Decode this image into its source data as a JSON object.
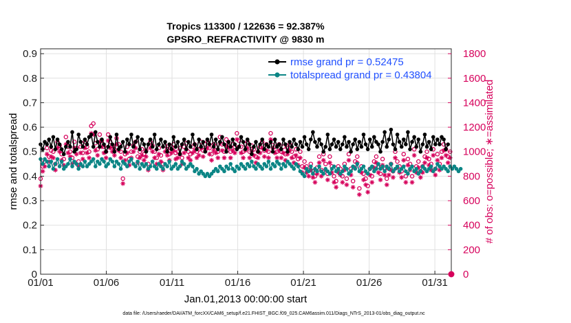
{
  "chart_data": {
    "type": "line",
    "title_line1": "Tropics 113300 / 122636 = 92.387%",
    "title_line2": "GPSRO_REFRACTIVITY @ 9830 m",
    "xlabel": "Jan.01,2013 00:00:00 start",
    "ylabel_left": "rmse and totalspread",
    "ylabel_right": "# of obs: o=possible; ∗=assimilated",
    "x_ticks": [
      "01/01",
      "01/06",
      "01/11",
      "01/16",
      "01/21",
      "01/26",
      "01/31"
    ],
    "y_left_ticks": [
      "0",
      "0.1",
      "0.2",
      "0.3",
      "0.4",
      "0.5",
      "0.6",
      "0.7",
      "0.8",
      "0.9"
    ],
    "y_right_ticks": [
      "0",
      "200",
      "400",
      "600",
      "800",
      "1000",
      "1200",
      "1400",
      "1600",
      "1800"
    ],
    "xlim": [
      0,
      31.25
    ],
    "ylim_left": [
      0,
      0.92
    ],
    "ylim_right": [
      0,
      1840
    ],
    "footer": "data file: /Users/raeder/DAI/ATM_forcXX/CAM6_setup/f.e21.FHIST_BGC.f09_025.CAM6assim.011/Diags_NTrS_2013-01/obs_diag_output.nc",
    "colors": {
      "rmse": "#000000",
      "spread": "#0b8585",
      "obs": "#d6005b",
      "legend_text": "#1f4fff",
      "grid": "#e0e0e0"
    },
    "series": [
      {
        "name": "rmse grand pr = 0.52475",
        "values": [
          0.53,
          0.51,
          0.54,
          0.53,
          0.55,
          0.52,
          0.56,
          0.51,
          0.55,
          0.53,
          0.51,
          0.49,
          0.52,
          0.54,
          0.52,
          0.58,
          0.5,
          0.51,
          0.57,
          0.54,
          0.52,
          0.55,
          0.53,
          0.56,
          0.57,
          0.52,
          0.58,
          0.54,
          0.52,
          0.55,
          0.53,
          0.5,
          0.52,
          0.56,
          0.53,
          0.5,
          0.57,
          0.51,
          0.52,
          0.54,
          0.5,
          0.55,
          0.53,
          0.57,
          0.52,
          0.54,
          0.56,
          0.51,
          0.55,
          0.53,
          0.5,
          0.53,
          0.55,
          0.52,
          0.57,
          0.51,
          0.53,
          0.55,
          0.52,
          0.54,
          0.5,
          0.53,
          0.51,
          0.56,
          0.52,
          0.54,
          0.49,
          0.53,
          0.55,
          0.51,
          0.54,
          0.52,
          0.57,
          0.53,
          0.51,
          0.55,
          0.52,
          0.54,
          0.5,
          0.55,
          0.53,
          0.57,
          0.52,
          0.55,
          0.51,
          0.54,
          0.56,
          0.53,
          0.5,
          0.54,
          0.52,
          0.55,
          0.53,
          0.51,
          0.52,
          0.56,
          0.54,
          0.51,
          0.55,
          0.53,
          0.49,
          0.52,
          0.54,
          0.5,
          0.53,
          0.55,
          0.51,
          0.53,
          0.52,
          0.54,
          0.5,
          0.55,
          0.52,
          0.53,
          0.51,
          0.55,
          0.53,
          0.5,
          0.54,
          0.52,
          0.55,
          0.53,
          0.51,
          0.54,
          0.52,
          0.56,
          0.53,
          0.51,
          0.55,
          0.58,
          0.54,
          0.52,
          0.55,
          0.53,
          0.5,
          0.52,
          0.57,
          0.51,
          0.53,
          0.55,
          0.52,
          0.54,
          0.51,
          0.53,
          0.56,
          0.52,
          0.54,
          0.5,
          0.53,
          0.55,
          0.51,
          0.54,
          0.52,
          0.57,
          0.53,
          0.51,
          0.55,
          0.52,
          0.56,
          0.54,
          0.53,
          0.5,
          0.54,
          0.58,
          0.52,
          0.55,
          0.59,
          0.53,
          0.51,
          0.57,
          0.54,
          0.52,
          0.55,
          0.53,
          0.58,
          0.51,
          0.54,
          0.56,
          0.52,
          0.55,
          0.5,
          0.53,
          0.57,
          0.52,
          0.54,
          0.51,
          0.56,
          0.53,
          0.55,
          0.53,
          0.56,
          0.55,
          0.51,
          0.53
        ]
      },
      {
        "name": "totalspread grand pr = 0.43804",
        "values": [
          0.47,
          0.45,
          0.47,
          0.46,
          0.44,
          0.46,
          0.43,
          0.45,
          0.47,
          0.44,
          0.46,
          0.43,
          0.44,
          0.45,
          0.47,
          0.44,
          0.46,
          0.45,
          0.43,
          0.45,
          0.44,
          0.46,
          0.44,
          0.45,
          0.46,
          0.47,
          0.44,
          0.46,
          0.45,
          0.47,
          0.46,
          0.44,
          0.45,
          0.47,
          0.46,
          0.44,
          0.46,
          0.45,
          0.43,
          0.46,
          0.45,
          0.44,
          0.46,
          0.47,
          0.45,
          0.44,
          0.46,
          0.43,
          0.45,
          0.44,
          0.45,
          0.43,
          0.44,
          0.46,
          0.44,
          0.43,
          0.45,
          0.44,
          0.43,
          0.45,
          0.44,
          0.46,
          0.43,
          0.44,
          0.45,
          0.43,
          0.44,
          0.46,
          0.45,
          0.43,
          0.44,
          0.45,
          0.44,
          0.42,
          0.43,
          0.41,
          0.42,
          0.41,
          0.4,
          0.41,
          0.4,
          0.41,
          0.42,
          0.43,
          0.42,
          0.44,
          0.43,
          0.42,
          0.44,
          0.43,
          0.45,
          0.43,
          0.42,
          0.44,
          0.43,
          0.45,
          0.44,
          0.43,
          0.45,
          0.44,
          0.46,
          0.44,
          0.43,
          0.45,
          0.44,
          0.43,
          0.45,
          0.44,
          0.46,
          0.43,
          0.45,
          0.44,
          0.46,
          0.45,
          0.43,
          0.45,
          0.44,
          0.46,
          0.45,
          0.44,
          0.43,
          0.45,
          0.44,
          0.42,
          0.41,
          0.4,
          0.43,
          0.42,
          0.44,
          0.41,
          0.43,
          0.42,
          0.44,
          0.42,
          0.41,
          0.43,
          0.42,
          0.41,
          0.43,
          0.44,
          0.42,
          0.43,
          0.41,
          0.42,
          0.44,
          0.43,
          0.41,
          0.42,
          0.44,
          0.43,
          0.45,
          0.42,
          0.43,
          0.44,
          0.42,
          0.41,
          0.43,
          0.44,
          0.42,
          0.43,
          0.45,
          0.43,
          0.44,
          0.42,
          0.44,
          0.43,
          0.45,
          0.42,
          0.43,
          0.44,
          0.42,
          0.43,
          0.44,
          0.42,
          0.41,
          0.43,
          0.44,
          0.42,
          0.43,
          0.41,
          0.42,
          0.44,
          0.43,
          0.42,
          0.43,
          0.44,
          0.42,
          0.43,
          0.45,
          0.44,
          0.43,
          0.44,
          0.43,
          0.42,
          0.44,
          0.43,
          0.44,
          0.43,
          0.42,
          0.43
        ]
      },
      {
        "name": "obs possible",
        "axis": "right",
        "values": [
          780,
          880,
          920,
          1030,
          960,
          1010,
          1000,
          900,
          1080,
          1050,
          980,
          940,
          1120,
          1040,
          1000,
          950,
          1080,
          1030,
          920,
          1040,
          990,
          1080,
          1040,
          1000,
          1210,
          1230,
          1070,
          1020,
          1140,
          1090,
          1040,
          1000,
          1140,
          1080,
          1050,
          1020,
          1110,
          1060,
          1000,
          780,
          980,
          1040,
          940,
          1000,
          1050,
          1080,
          960,
          1000,
          1020,
          980,
          1010,
          900,
          1080,
          1050,
          1000,
          950,
          1030,
          970,
          900,
          1050,
          1020,
          980,
          1040,
          1060,
          990,
          1000,
          1030,
          950,
          1040,
          1070,
          1000,
          980,
          1040,
          1060,
          1000,
          1020,
          1080,
          1010,
          1060,
          1080,
          1030,
          980,
          1060,
          1040,
          1000,
          1120,
          1060,
          1000,
          1100,
          1080,
          1000,
          1060,
          1040,
          1150,
          1090,
          1040,
          1000,
          1060,
          1080,
          1000,
          1050,
          1020,
          960,
          1000,
          1040,
          1080,
          1010,
          1060,
          1000,
          1150,
          1080,
          1040,
          1000,
          1060,
          1000,
          1040,
          980,
          1030,
          1060,
          1000,
          960,
          1020,
          940,
          1000,
          880,
          920,
          880,
          850,
          900,
          840,
          800,
          870,
          960,
          850,
          980,
          900,
          820,
          960,
          880,
          800,
          760,
          880,
          860,
          800,
          900,
          780,
          980,
          860,
          760,
          920,
          960,
          700,
          880,
          820,
          780,
          720,
          860,
          800,
          920,
          960,
          880,
          820,
          940,
          860,
          780,
          860,
          900,
          840,
          1000,
          920,
          880,
          840,
          980,
          800,
          940,
          900,
          800,
          1020,
          880,
          920,
          840,
          880,
          960,
          1000,
          940,
          900,
          1020,
          860,
          980,
          900,
          1000,
          1060,
          1020,
          960,
          1000
        ]
      },
      {
        "name": "obs assimilated",
        "axis": "right",
        "values": [
          720,
          840,
          880,
          980,
          920,
          960,
          950,
          850,
          1030,
          1000,
          930,
          890,
          1060,
          990,
          960,
          900,
          1030,
          980,
          880,
          990,
          940,
          1030,
          990,
          950,
          1150,
          1140,
          1010,
          970,
          1080,
          1040,
          990,
          950,
          1090,
          1030,
          1000,
          970,
          1060,
          1010,
          950,
          740,
          930,
          990,
          890,
          950,
          1000,
          1030,
          910,
          950,
          970,
          930,
          960,
          850,
          1030,
          1000,
          950,
          900,
          980,
          920,
          850,
          1000,
          970,
          930,
          990,
          1010,
          940,
          950,
          980,
          900,
          990,
          1020,
          950,
          930,
          990,
          1010,
          950,
          970,
          1030,
          960,
          1010,
          1030,
          980,
          930,
          1010,
          990,
          950,
          1070,
          1010,
          950,
          1050,
          1030,
          950,
          1010,
          990,
          1100,
          1040,
          990,
          950,
          1010,
          1030,
          950,
          1000,
          970,
          910,
          950,
          990,
          1030,
          960,
          1010,
          950,
          1100,
          1030,
          990,
          950,
          1010,
          950,
          990,
          930,
          980,
          1010,
          950,
          910,
          970,
          890,
          950,
          830,
          870,
          830,
          800,
          850,
          790,
          750,
          820,
          910,
          800,
          930,
          850,
          770,
          910,
          830,
          750,
          710,
          830,
          810,
          750,
          850,
          730,
          930,
          810,
          710,
          870,
          910,
          650,
          830,
          770,
          730,
          670,
          810,
          750,
          870,
          910,
          830,
          770,
          890,
          810,
          730,
          810,
          850,
          790,
          950,
          870,
          830,
          790,
          930,
          750,
          890,
          850,
          750,
          970,
          830,
          870,
          790,
          830,
          910,
          950,
          890,
          850,
          970,
          810,
          930,
          850,
          950,
          1010,
          970,
          910,
          950
        ]
      }
    ]
  }
}
